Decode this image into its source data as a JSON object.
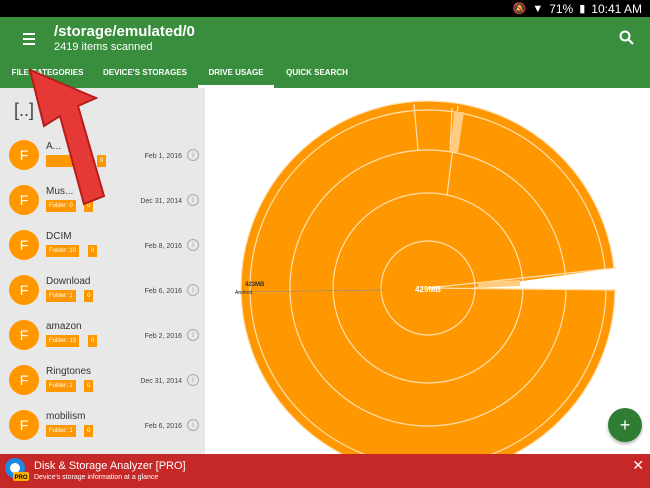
{
  "status": {
    "battery": "71%",
    "time": "10:41 AM"
  },
  "header": {
    "title": "/storage/emulated/0",
    "subtitle": "2419 items scanned"
  },
  "tabs": [
    {
      "label": "FILE CATEGORIES"
    },
    {
      "label": "DEVICE'S STORAGES"
    },
    {
      "label": "DRIVE USAGE"
    },
    {
      "label": "QUICK SEARCH"
    }
  ],
  "list": {
    "updir": "[..]",
    "items": [
      {
        "letter": "F",
        "name": "A...",
        "folder": "",
        "count": "0",
        "date": "Feb 1, 2016"
      },
      {
        "letter": "F",
        "name": "Mus...",
        "folder": "Folder: 0",
        "count": "0",
        "date": "Dec 31, 2014"
      },
      {
        "letter": "F",
        "name": "DCIM",
        "folder": "Folder: 10",
        "count": "0",
        "date": "Feb 8, 2016"
      },
      {
        "letter": "F",
        "name": "Download",
        "folder": "Folder: 1",
        "count": "0",
        "date": "Feb 6, 2016"
      },
      {
        "letter": "F",
        "name": "amazon",
        "folder": "Folder: 13",
        "count": "0",
        "date": "Feb 2, 2016"
      },
      {
        "letter": "F",
        "name": "Ringtones",
        "folder": "Folder: 2",
        "count": "0",
        "date": "Dec 31, 2014"
      },
      {
        "letter": "F",
        "name": "mobilism",
        "folder": "Folder: 1",
        "count": "0",
        "date": "Feb 6, 2016"
      }
    ]
  },
  "chart": {
    "center_label": "429MB",
    "side_label": "423MB",
    "side_sub": "Android",
    "color": "#ff9800"
  },
  "fab": {
    "label": "+"
  },
  "ad": {
    "title": "Disk & Storage Analyzer [PRO]",
    "subtitle": "Device's storage information at a glance",
    "close": "✕",
    "badge": "PRO"
  }
}
